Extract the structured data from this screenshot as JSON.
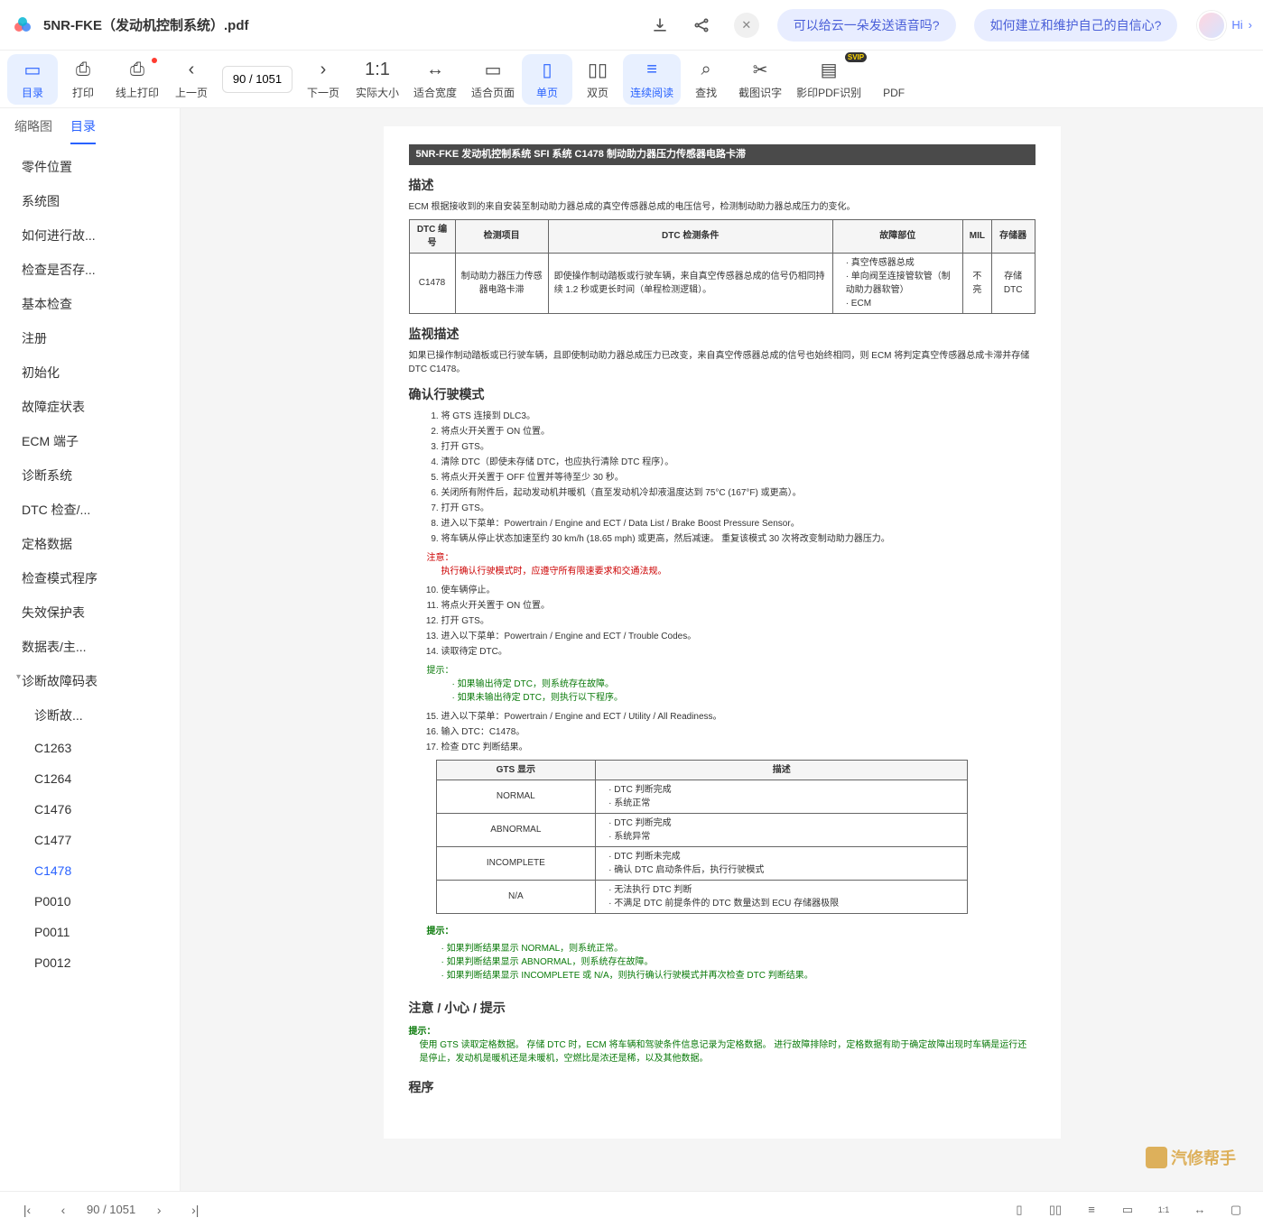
{
  "header": {
    "filename": "5NR-FKE（发动机控制系统）.pdf",
    "hi_label": "Hi",
    "pills": [
      "可以给云一朵发送语音吗?",
      "如何建立和维护自己的自信心?"
    ]
  },
  "toolbar": {
    "items": [
      {
        "id": "toc",
        "label": "目录",
        "icon": "▭",
        "active": true
      },
      {
        "id": "print",
        "label": "打印",
        "icon": "⎙"
      },
      {
        "id": "online-print",
        "label": "线上打印",
        "icon": "⎙",
        "dot": true
      },
      {
        "id": "prev",
        "label": "上一页",
        "icon": "‹"
      },
      {
        "id": "pageinput",
        "value": "90 / 1051"
      },
      {
        "id": "next",
        "label": "下一页",
        "icon": "›"
      },
      {
        "id": "actual",
        "label": "实际大小",
        "icon": "1:1"
      },
      {
        "id": "fitw",
        "label": "适合宽度",
        "icon": "↔"
      },
      {
        "id": "fitp",
        "label": "适合页面",
        "icon": "▭"
      },
      {
        "id": "single",
        "label": "单页",
        "icon": "▯",
        "active": true
      },
      {
        "id": "double",
        "label": "双页",
        "icon": "▯▯"
      },
      {
        "id": "continuous",
        "label": "连续阅读",
        "icon": "≡",
        "active": true
      },
      {
        "id": "find",
        "label": "查找",
        "icon": "⌕"
      },
      {
        "id": "screenshot",
        "label": "截图识字",
        "icon": "✂"
      },
      {
        "id": "scanpdf",
        "label": "影印PDF识别",
        "icon": "▤",
        "svip": true
      },
      {
        "id": "pdf",
        "label": "PDF",
        "icon": ""
      }
    ]
  },
  "sidebar": {
    "tabs": [
      "缩略图",
      "目录"
    ],
    "active_tab": 1,
    "toc": [
      {
        "label": "零件位置",
        "lv": 1
      },
      {
        "label": "系统图",
        "lv": 1
      },
      {
        "label": "如何进行故...",
        "lv": 1
      },
      {
        "label": "检查是否存...",
        "lv": 1
      },
      {
        "label": "基本检查",
        "lv": 1
      },
      {
        "label": "注册",
        "lv": 1
      },
      {
        "label": "初始化",
        "lv": 1
      },
      {
        "label": "故障症状表",
        "lv": 1
      },
      {
        "label": "ECM 端子",
        "lv": 1
      },
      {
        "label": "诊断系统",
        "lv": 1
      },
      {
        "label": "DTC 检查/...",
        "lv": 1
      },
      {
        "label": "定格数据",
        "lv": 1
      },
      {
        "label": "检查模式程序",
        "lv": 1
      },
      {
        "label": "失效保护表",
        "lv": 1
      },
      {
        "label": "数据表/主...",
        "lv": 1
      },
      {
        "label": "诊断故障码表",
        "lv": 1,
        "expand": "▾"
      },
      {
        "label": "诊断故...",
        "lv": 2
      },
      {
        "label": "C1263",
        "lv": 2
      },
      {
        "label": "C1264",
        "lv": 2
      },
      {
        "label": "C1476",
        "lv": 2
      },
      {
        "label": "C1477",
        "lv": 2
      },
      {
        "label": "C1478",
        "lv": 2,
        "selected": true
      },
      {
        "label": "P0010",
        "lv": 2
      },
      {
        "label": "P0011",
        "lv": 2
      },
      {
        "label": "P0012",
        "lv": 2
      }
    ]
  },
  "document": {
    "header_bar": "5NR-FKE 发动机控制系统  SFI 系统  C1478  制动助力器压力传感器电路卡滞",
    "sec_desc": "描述",
    "desc_text": "ECM 根据接收到的来自安装至制动助力器总成的真空传感器总成的电压信号，检测制动助力器总成压力的变化。",
    "table1": {
      "headers": [
        "DTC 编号",
        "检测项目",
        "DTC 检测条件",
        "故障部位",
        "MIL",
        "存储器"
      ],
      "row": {
        "code": "C1478",
        "item": "制动助力器压力传感器电路卡滞",
        "cond": "即使操作制动踏板或行驶车辆，来自真空传感器总成的信号仍相同持续 1.2 秒或更长时间（单程检测逻辑）。",
        "parts": [
          "真空传感器总成",
          "单向阀至连接管软管（制动助力器软管）",
          "ECM"
        ],
        "mil": "不亮",
        "mem": "存储 DTC"
      }
    },
    "sec_monitor": "监视描述",
    "monitor_text": "如果已操作制动踏板或已行驶车辆，且即使制动助力器总成压力已改变，来自真空传感器总成的信号也始终相同，则 ECM 将判定真空传感器总成卡滞并存储 DTC C1478。",
    "sec_confirm": "确认行驶模式",
    "steps1": [
      "将 GTS 连接到 DLC3。",
      "将点火开关置于 ON 位置。",
      "打开 GTS。",
      "清除 DTC（即使未存储 DTC，也应执行清除 DTC 程序）。",
      "将点火开关置于 OFF 位置并等待至少 30 秒。",
      "关闭所有附件后，起动发动机并暖机（直至发动机冷却液温度达到 75°C (167°F) 或更高）。",
      "打开 GTS。",
      "进入以下菜单：Powertrain / Engine and ECT / Data List / Brake Boost Pressure Sensor。",
      "将车辆从停止状态加速至约 30 km/h (18.65 mph) 或更高，然后减速。 重复该模式 30 次将改变制动助力器压力。"
    ],
    "note_red_label": "注意：",
    "note_red_text": "执行确认行驶模式时，应遵守所有限速要求和交通法规。",
    "steps2_start": 10,
    "steps2": [
      "使车辆停止。",
      "将点火开关置于 ON 位置。",
      "打开 GTS。",
      "进入以下菜单：Powertrain / Engine and ECT / Trouble Codes。",
      "读取待定 DTC。"
    ],
    "hint_label": "提示：",
    "hint_items": [
      "如果输出待定 DTC，则系统存在故障。",
      "如果未输出待定 DTC，则执行以下程序。"
    ],
    "steps3_start": 15,
    "steps3": [
      "进入以下菜单：Powertrain / Engine and ECT / Utility / All Readiness。",
      "输入 DTC：C1478。",
      "检查 DTC 判断结果。"
    ],
    "table2": {
      "headers": [
        "GTS 显示",
        "描述"
      ],
      "rows": [
        {
          "disp": "NORMAL",
          "desc": [
            "DTC 判断完成",
            "系统正常"
          ]
        },
        {
          "disp": "ABNORMAL",
          "desc": [
            "DTC 判断完成",
            "系统异常"
          ]
        },
        {
          "disp": "INCOMPLETE",
          "desc": [
            "DTC 判断未完成",
            "确认 DTC 启动条件后，执行行驶模式"
          ]
        },
        {
          "disp": "N/A",
          "desc": [
            "无法执行 DTC 判断",
            "不满足 DTC 前提条件的 DTC 数量达到 ECU 存储器极限"
          ]
        }
      ]
    },
    "hint2_label": "提示：",
    "hint2_items": [
      "如果判断结果显示 NORMAL，则系统正常。",
      "如果判断结果显示 ABNORMAL，则系统存在故障。",
      "如果判断结果显示 INCOMPLETE 或 N/A，则执行确认行驶模式并再次检查 DTC 判断结果。"
    ],
    "sec_caution": "注意 / 小心 / 提示",
    "caution_label": "提示：",
    "caution_text": "使用 GTS 读取定格数据。 存储 DTC 时，ECM 将车辆和驾驶条件信息记录为定格数据。 进行故障排除时，定格数据有助于确定故障出现时车辆是运行还是停止，发动机是暖机还是未暖机，空燃比是浓还是稀，以及其他数据。",
    "sec_proc": "程序",
    "watermark": "汽修帮手"
  },
  "footer": {
    "page_indicator": "90 / 1051"
  }
}
